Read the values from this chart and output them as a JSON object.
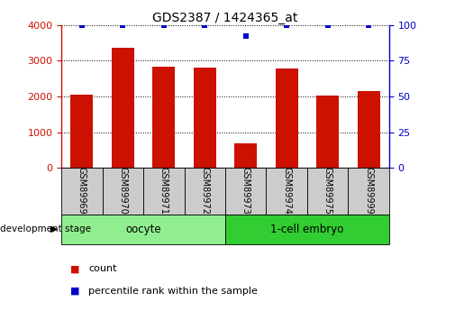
{
  "title": "GDS2387 / 1424365_at",
  "samples": [
    "GSM89969",
    "GSM89970",
    "GSM89971",
    "GSM89972",
    "GSM89973",
    "GSM89974",
    "GSM89975",
    "GSM89999"
  ],
  "counts": [
    2050,
    3350,
    2820,
    2810,
    700,
    2780,
    2020,
    2160
  ],
  "percentiles": [
    100,
    100,
    100,
    100,
    92,
    100,
    100,
    100
  ],
  "groups": [
    {
      "label": "oocyte",
      "start": 0,
      "end": 3,
      "color": "#90EE90"
    },
    {
      "label": "1-cell embryo",
      "start": 4,
      "end": 7,
      "color": "#32CD32"
    }
  ],
  "bar_color": "#CC1100",
  "dot_color": "#0000CC",
  "left_axis_color": "#CC1100",
  "right_axis_color": "#0000CC",
  "ylim_left": [
    0,
    4000
  ],
  "ylim_right": [
    0,
    100
  ],
  "yticks_left": [
    0,
    1000,
    2000,
    3000,
    4000
  ],
  "yticks_right": [
    0,
    25,
    50,
    75,
    100
  ],
  "grid_color": "#000000",
  "sample_box_color": "#CCCCCC",
  "group_label_dev_stage": "development stage",
  "legend_count_label": "count",
  "legend_pct_label": "percentile rank within the sample"
}
